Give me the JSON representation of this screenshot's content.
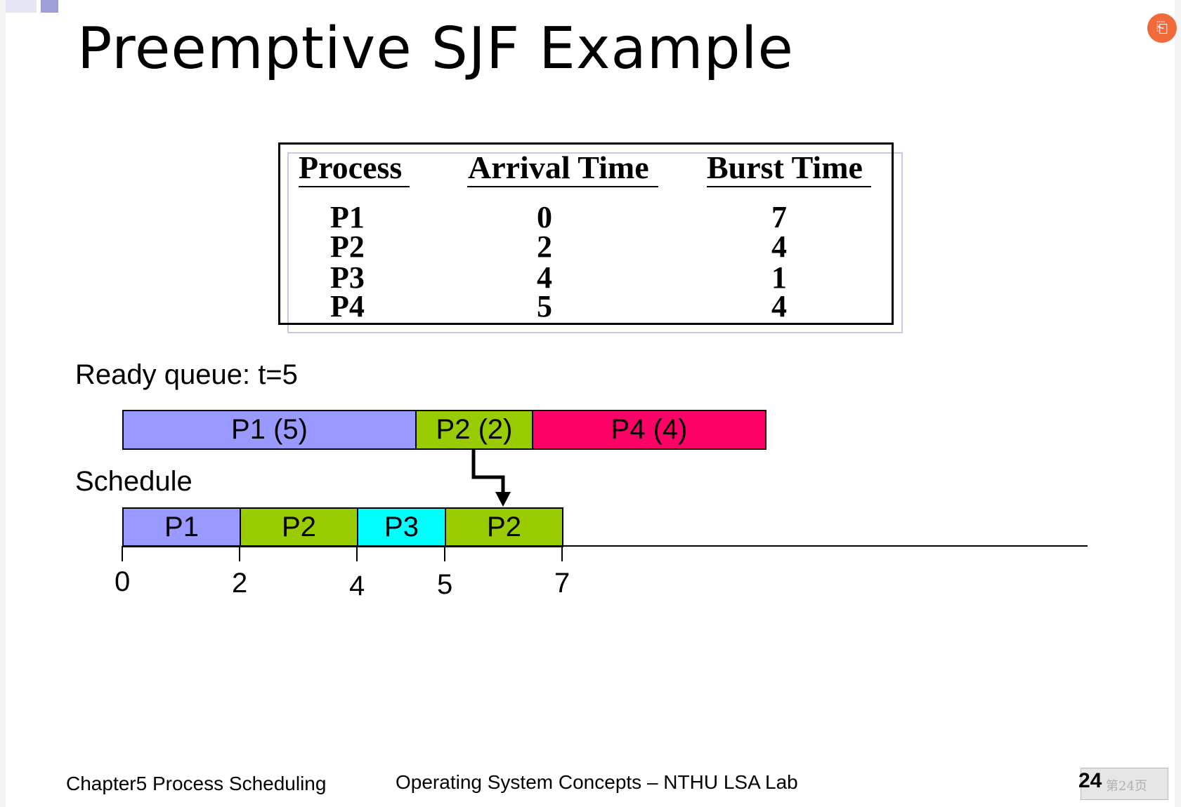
{
  "title": "Preemptive SJF Example",
  "corner_icon": "slide-share-icon",
  "process_table": {
    "headers": [
      "Process",
      "Arrival Time",
      "Burst Time"
    ],
    "rows": [
      {
        "process": "P1",
        "arrival": "0",
        "burst": "7"
      },
      {
        "process": "P2",
        "arrival": "2",
        "burst": "4"
      },
      {
        "process": "P3",
        "arrival": "4",
        "burst": "1"
      },
      {
        "process": "P4",
        "arrival": "5",
        "burst": "4"
      }
    ]
  },
  "ready_queue": {
    "label": "Ready queue: t=5",
    "items": [
      {
        "label": "P1 (5)",
        "color": "#9999ff"
      },
      {
        "label": "P2 (2)",
        "color": "#99cc00"
      },
      {
        "label": "P4 (4)",
        "color": "#ff0066"
      }
    ]
  },
  "schedule": {
    "label": "Schedule",
    "blocks": [
      {
        "label": "P1",
        "start": 0,
        "end": 2,
        "color": "#9999ff"
      },
      {
        "label": "P2",
        "start": 2,
        "end": 4,
        "color": "#99cc00"
      },
      {
        "label": "P3",
        "start": 4,
        "end": 5,
        "color": "#00ffff"
      },
      {
        "label": "P2",
        "start": 5,
        "end": 7,
        "color": "#99cc00"
      }
    ],
    "ticks": [
      "0",
      "2",
      "4",
      "5",
      "7"
    ]
  },
  "footer": {
    "left": "Chapter5 Process Scheduling",
    "center": "Operating System Concepts – NTHU LSA Lab",
    "page": "24",
    "page_watermark": "第24页"
  }
}
